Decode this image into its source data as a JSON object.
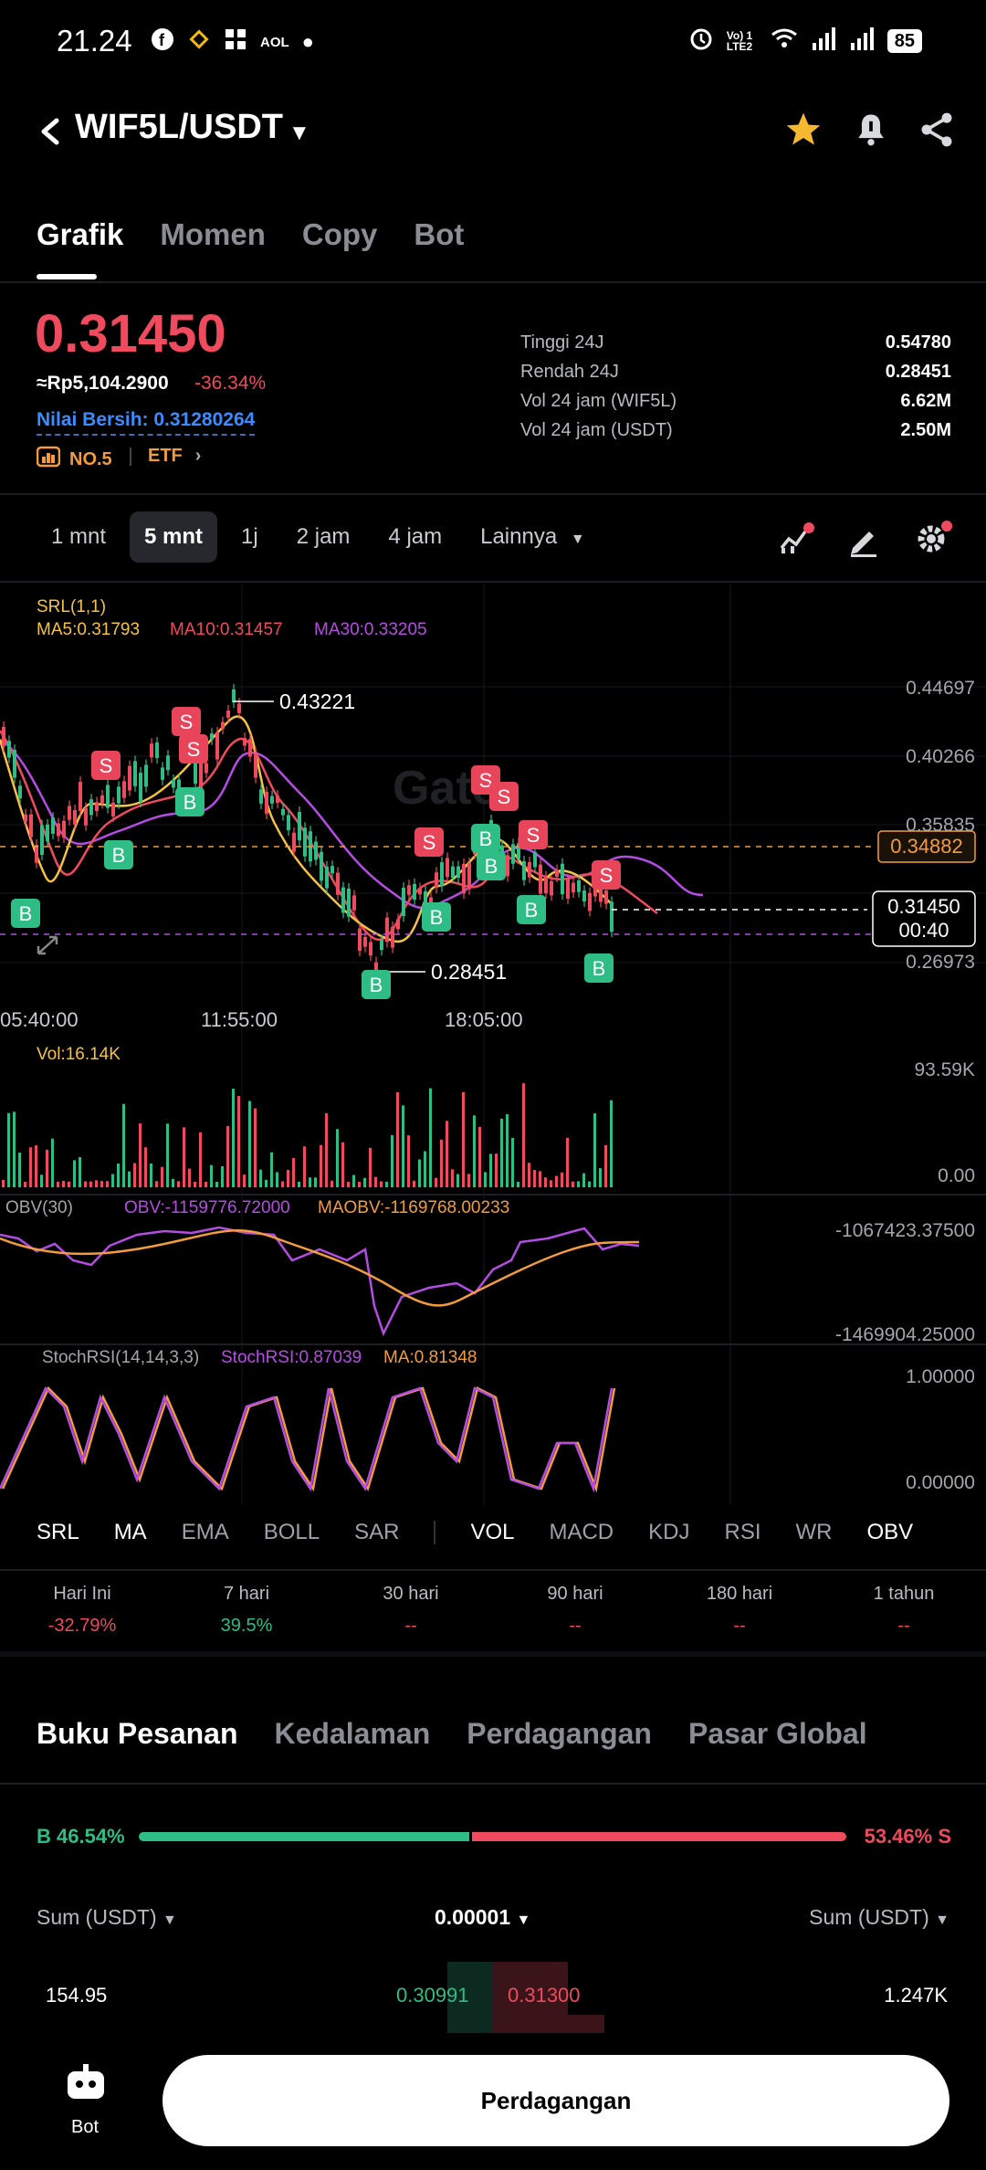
{
  "status": {
    "time": "21.24",
    "left_icons": [
      "facebook-icon",
      "binance-icon",
      "grid-app-icon",
      "aol-icon",
      "dot-icon"
    ],
    "aol": "AOL",
    "volte": "Vo) 1 LTE2",
    "battery": "85"
  },
  "header": {
    "pair": "WIF5L/USDT",
    "icons": [
      "back-icon",
      "star-icon",
      "bell-icon",
      "share-icon"
    ]
  },
  "top_tabs": [
    "Grafik",
    "Momen",
    "Copy",
    "Bot"
  ],
  "ticker": {
    "price": "0.31450",
    "idr": "≈Rp5,104.2900",
    "change": "-36.34%",
    "net_value": "Nilai Bersih: 0.31280264",
    "rank": "NO.5",
    "etf": "ETF",
    "stats": [
      {
        "label": "Tinggi 24J",
        "value": "0.54780"
      },
      {
        "label": "Rendah 24J",
        "value": "0.28451"
      },
      {
        "label": "Vol 24 jam (WIF5L)",
        "value": "6.62M"
      },
      {
        "label": "Vol 24 jam (USDT)",
        "value": "2.50M"
      }
    ]
  },
  "intervals": [
    "1 mnt",
    "5 mnt",
    "1j",
    "2 jam",
    "4 jam",
    "Lainnya"
  ],
  "chart_labels": {
    "srl": "SRL(1,1)",
    "ma5": "MA5:0.31793",
    "ma10": "MA10:0.31457",
    "ma30": "MA30:0.33205",
    "price_axis": [
      "0.44697",
      "0.40266",
      "0.35835",
      "0.31404",
      "0.26973"
    ],
    "time_axis": [
      "05:40:00",
      "11:55:00",
      "18:05:00"
    ],
    "high_marker": "0.43221",
    "low_marker": "0.28451",
    "line_tag": "0.34882",
    "current_price": "0.31450",
    "countdown": "00:40",
    "watermark": "Gate",
    "vol_label": "Vol:16.14K",
    "vol_axis": [
      "93.59K",
      "0.00"
    ],
    "obv_name": "OBV(30)",
    "obv_val": "OBV:-1159776.72000",
    "maobv_val": "MAOBV:-1169768.00233",
    "obv_axis": [
      "-1067423.37500",
      "-1469904.25000"
    ],
    "stoch_name": "StochRSI(14,14,3,3)",
    "stoch_val": "StochRSI:0.87039",
    "stoch_ma": "MA:0.81348",
    "stoch_axis": [
      "1.00000",
      "0.00000"
    ],
    "buy": "B",
    "sell": "S"
  },
  "indicator_tabs_main": [
    "SRL",
    "MA",
    "EMA",
    "BOLL",
    "SAR"
  ],
  "indicator_tabs_sub": [
    "VOL",
    "MACD",
    "KDJ",
    "RSI",
    "WR",
    "OBV"
  ],
  "performance": [
    {
      "label": "Hari Ini",
      "value": "-32.79%",
      "color": "#ef4a5e"
    },
    {
      "label": "7 hari",
      "value": "39.5%",
      "color": "#2ebd85"
    },
    {
      "label": "30 hari",
      "value": "--",
      "color": "#ef4a5e"
    },
    {
      "label": "90 hari",
      "value": "--",
      "color": "#ef4a5e"
    },
    {
      "label": "180 hari",
      "value": "--",
      "color": "#ef4a5e"
    },
    {
      "label": "1 tahun",
      "value": "--",
      "color": "#ef4a5e"
    }
  ],
  "orderbook_tabs": [
    "Buku Pesanan",
    "Kedalaman",
    "Perdagangan",
    "Pasar Global"
  ],
  "orderbook": {
    "buy_ratio": "B 46.54%",
    "sell_ratio": "53.46% S",
    "buy_fraction": 0.4654,
    "col_left": "Sum (USDT)",
    "col_mid": "0.00001",
    "col_right": "Sum (USDT)",
    "row": {
      "sum_buy": "154.95",
      "bid": "0.30991",
      "ask": "0.31300",
      "sum_sell": "1.247K"
    }
  },
  "bottom": {
    "bot_label": "Bot",
    "trade_label": "Perdagangan"
  },
  "colors": {
    "up": "#2ebd85",
    "down": "#ef4a5e",
    "ma5": "#f5c242",
    "ma10": "#ef4a5e",
    "ma30": "#b54ce3",
    "accent": "#f39c3d"
  }
}
